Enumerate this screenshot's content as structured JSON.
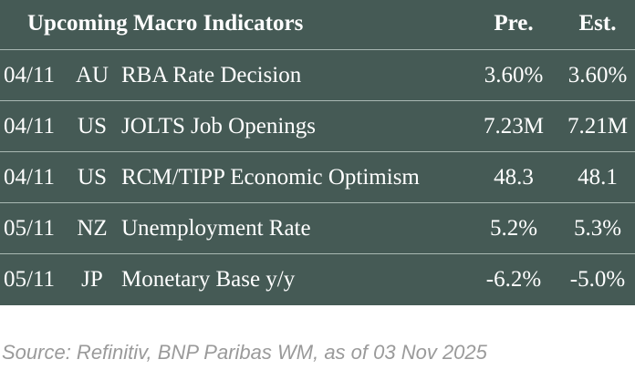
{
  "table": {
    "title": "Upcoming Macro Indicators",
    "columns": [
      "Pre.",
      "Est."
    ],
    "rows": [
      [
        "04/11",
        "AU",
        "RBA Rate Decision",
        "3.60%",
        "3.60%"
      ],
      [
        "04/11",
        "US",
        "JOLTS Job Openings",
        "7.23M",
        "7.21M"
      ],
      [
        "04/11",
        "US",
        "RCM/TIPP Economic Optimism",
        "48.3",
        "48.1"
      ],
      [
        "05/11",
        "NZ",
        "Unemployment Rate",
        "5.2%",
        "5.3%"
      ],
      [
        "05/11",
        "JP",
        "Monetary Base y/y",
        "-6.2%",
        "-5.0%"
      ]
    ]
  },
  "source": "Source: Refinitiv, BNP Paribas WM, as of 03 Nov 2025"
}
